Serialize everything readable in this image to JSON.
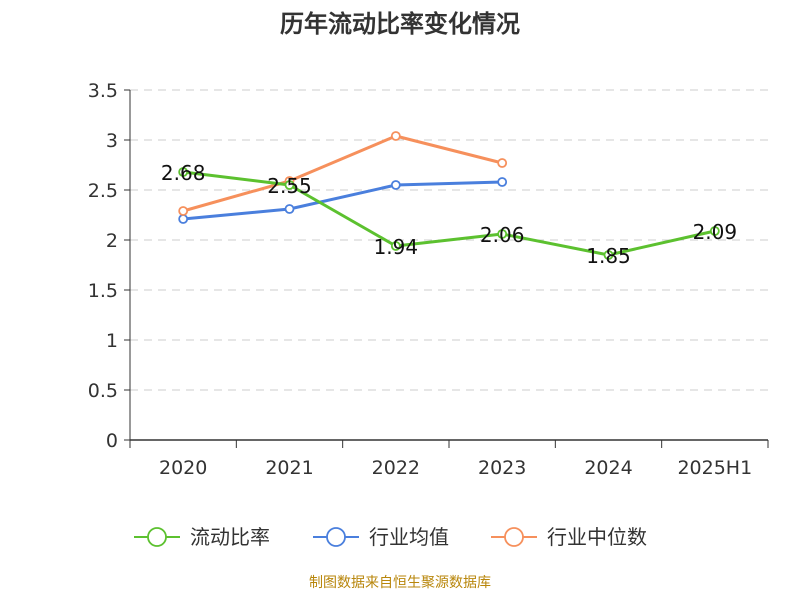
{
  "chart_data": {
    "type": "line",
    "title": "历年流动比率变化情况",
    "categories": [
      "2020",
      "2021",
      "2022",
      "2023",
      "2024",
      "2025H1"
    ],
    "ylim": [
      0,
      3.5
    ],
    "yticks": [
      "0",
      "0.5",
      "1",
      "1.5",
      "2",
      "2.5",
      "3",
      "3.5"
    ],
    "grid": true,
    "legend_position": "bottom",
    "series": [
      {
        "name": "流动比率",
        "color": "#5cc12f",
        "values": [
          2.68,
          2.55,
          1.94,
          2.06,
          1.85,
          2.09
        ],
        "labels": [
          "2.68",
          "2.55",
          "1.94",
          "2.06",
          "1.85",
          "2.09"
        ]
      },
      {
        "name": "行业均值",
        "color": "#4a7fdd",
        "values": [
          2.21,
          2.31,
          2.55,
          2.58,
          null,
          null
        ]
      },
      {
        "name": "行业中位数",
        "color": "#f6905c",
        "values": [
          2.29,
          2.59,
          3.04,
          2.77,
          null,
          null
        ]
      }
    ],
    "source_note": "制图数据来自恒生聚源数据库"
  }
}
